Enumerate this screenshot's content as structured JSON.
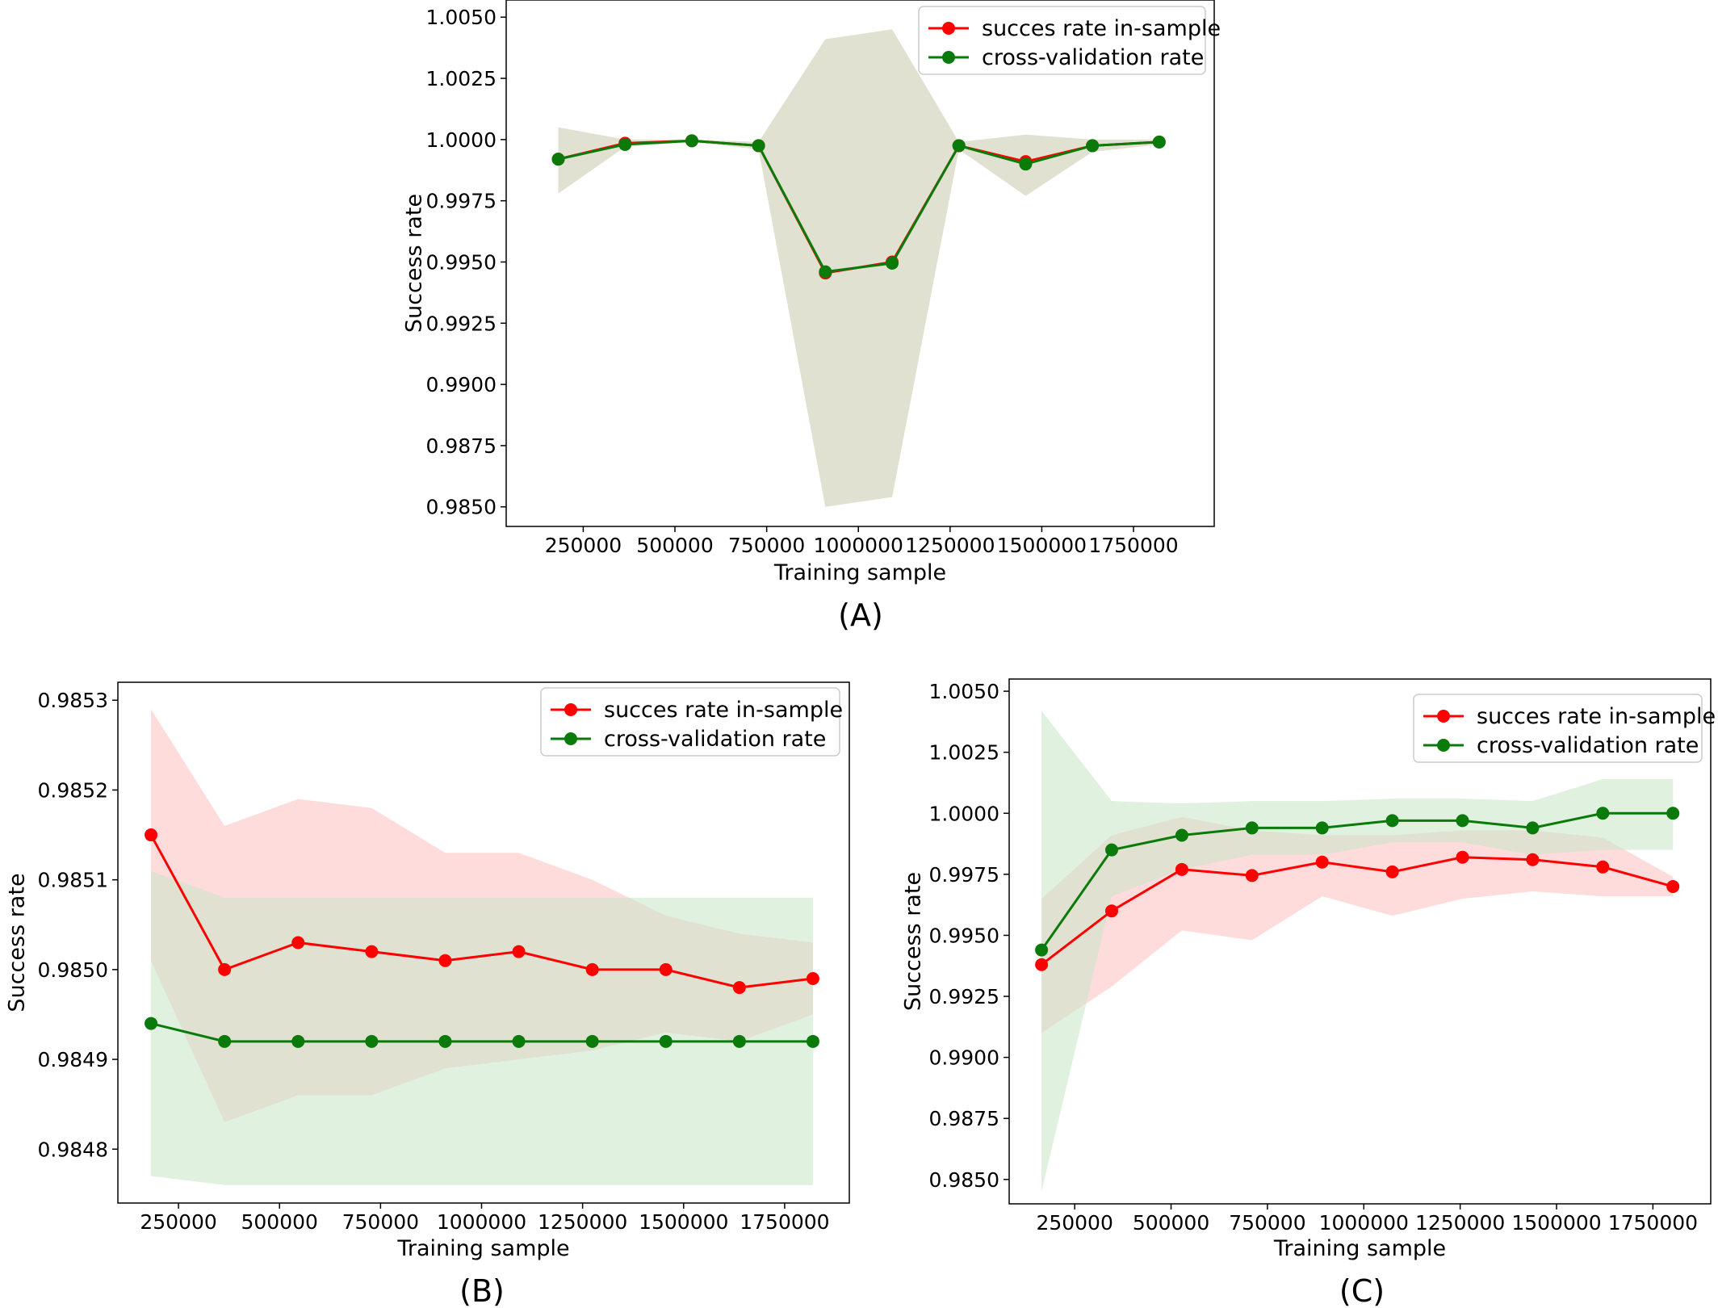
{
  "chart_data": [
    {
      "panel": "A",
      "caption": "(A)",
      "type": "line",
      "xlabel": "Training sample",
      "ylabel": "Success rate",
      "xticks": [
        250000,
        500000,
        750000,
        1000000,
        1250000,
        1500000,
        1750000
      ],
      "yticks": [
        0.985,
        0.9875,
        0.99,
        0.9925,
        0.995,
        0.9975,
        1.0,
        1.0025,
        1.005
      ],
      "xlim": [
        40000,
        1970000
      ],
      "ylim": [
        0.9842,
        1.0057
      ],
      "x": [
        182000,
        364000,
        546000,
        728000,
        910000,
        1092000,
        1274000,
        1456000,
        1638000,
        1820000
      ],
      "legend": "top-right",
      "grid": false,
      "series": [
        {
          "name": "succes rate in-sample",
          "color": "#ff0000",
          "band_color": "#ffc0c0",
          "values": [
            0.9992,
            0.99985,
            0.99995,
            0.99975,
            0.99455,
            0.995,
            0.99975,
            0.9991,
            0.99975,
            0.9999
          ],
          "band_upper": [
            1.0005,
            1.0,
            1.0,
            0.9999,
            1.0041,
            1.0045,
            0.9999,
            1.0002,
            1.0,
            1.0
          ],
          "band_lower": [
            0.9978,
            0.9997,
            0.9999,
            0.9996,
            0.985,
            0.9854,
            0.9996,
            0.9977,
            0.9995,
            0.9998
          ]
        },
        {
          "name": "cross-validation rate",
          "color": "#0a7a0a",
          "band_color": "#c6e6c6",
          "values": [
            0.9992,
            0.9998,
            0.99995,
            0.99975,
            0.9946,
            0.99495,
            0.99975,
            0.999,
            0.99975,
            0.9999
          ],
          "band_upper": [
            1.0005,
            1.0,
            1.0,
            0.9999,
            1.0041,
            1.0045,
            0.9999,
            1.0002,
            1.0,
            1.0
          ],
          "band_lower": [
            0.9978,
            0.9997,
            0.9999,
            0.9996,
            0.985,
            0.9854,
            0.9996,
            0.9977,
            0.9995,
            0.9998
          ]
        }
      ]
    },
    {
      "panel": "B",
      "caption": "(B)",
      "type": "line",
      "xlabel": "Training sample",
      "ylabel": "Success rate",
      "xticks": [
        250000,
        500000,
        750000,
        1000000,
        1250000,
        1500000,
        1750000
      ],
      "yticks": [
        0.9848,
        0.9849,
        0.985,
        0.9851,
        0.9852,
        0.9853
      ],
      "xlim": [
        100000,
        1910000
      ],
      "ylim": [
        0.98474,
        0.98532
      ],
      "x": [
        182000,
        364000,
        546000,
        728000,
        910000,
        1092000,
        1274000,
        1456000,
        1638000,
        1820000
      ],
      "legend": "top-right",
      "grid": false,
      "series": [
        {
          "name": "succes rate in-sample",
          "color": "#ff0000",
          "band_color": "#ffc0c0",
          "values": [
            0.98515,
            0.985,
            0.98503,
            0.98502,
            0.98501,
            0.98502,
            0.985,
            0.985,
            0.98498,
            0.98499
          ],
          "band_upper": [
            0.98529,
            0.98516,
            0.98519,
            0.98518,
            0.98513,
            0.98513,
            0.9851,
            0.98506,
            0.98504,
            0.98503
          ],
          "band_lower": [
            0.98501,
            0.98483,
            0.98486,
            0.98486,
            0.98489,
            0.9849,
            0.98491,
            0.98493,
            0.98492,
            0.98495
          ]
        },
        {
          "name": "cross-validation rate",
          "color": "#0a7a0a",
          "band_color": "#c6e6c6",
          "values": [
            0.98494,
            0.98492,
            0.98492,
            0.98492,
            0.98492,
            0.98492,
            0.98492,
            0.98492,
            0.98492,
            0.98492
          ],
          "band_upper": [
            0.98511,
            0.98508,
            0.98508,
            0.98508,
            0.98508,
            0.98508,
            0.98508,
            0.98508,
            0.98508,
            0.98508
          ],
          "band_lower": [
            0.98477,
            0.98476,
            0.98476,
            0.98476,
            0.98476,
            0.98476,
            0.98476,
            0.98476,
            0.98476,
            0.98476
          ]
        }
      ]
    },
    {
      "panel": "C",
      "caption": "(C)",
      "type": "line",
      "xlabel": "Training sample",
      "ylabel": "Success rate",
      "xticks": [
        250000,
        500000,
        750000,
        1000000,
        1250000,
        1500000,
        1750000
      ],
      "yticks": [
        0.985,
        0.9875,
        0.99,
        0.9925,
        0.995,
        0.9975,
        1.0,
        1.0025,
        1.005
      ],
      "xlim": [
        80000,
        1900000
      ],
      "ylim": [
        0.984,
        1.0055
      ],
      "x": [
        164000,
        346000,
        528000,
        710000,
        892000,
        1074000,
        1256000,
        1438000,
        1620000,
        1802000
      ],
      "legend": "top-right",
      "grid": false,
      "series": [
        {
          "name": "succes rate in-sample",
          "color": "#ff0000",
          "band_color": "#ffc0c0",
          "values": [
            0.9938,
            0.996,
            0.9977,
            0.99745,
            0.998,
            0.9976,
            0.9982,
            0.9981,
            0.9978,
            0.997
          ],
          "band_upper": [
            0.9965,
            0.9991,
            0.99985,
            0.9993,
            0.9991,
            0.9991,
            0.9993,
            0.9993,
            0.999,
            0.9974
          ],
          "band_lower": [
            0.991,
            0.9929,
            0.9952,
            0.9948,
            0.9966,
            0.9958,
            0.9965,
            0.9968,
            0.9966,
            0.9966
          ]
        },
        {
          "name": "cross-validation rate",
          "color": "#0a7a0a",
          "band_color": "#c6e6c6",
          "values": [
            0.9944,
            0.9985,
            0.9991,
            0.9994,
            0.9994,
            0.9997,
            0.9997,
            0.9994,
            1.0,
            1.0
          ],
          "band_upper": [
            1.0042,
            1.0005,
            1.0004,
            1.0005,
            1.0005,
            1.0006,
            1.0006,
            1.0005,
            1.0014,
            1.0014
          ],
          "band_lower": [
            0.9845,
            0.9966,
            0.9977,
            0.9983,
            0.9983,
            0.9988,
            0.9988,
            0.9983,
            0.9985,
            0.9985
          ]
        }
      ]
    }
  ]
}
